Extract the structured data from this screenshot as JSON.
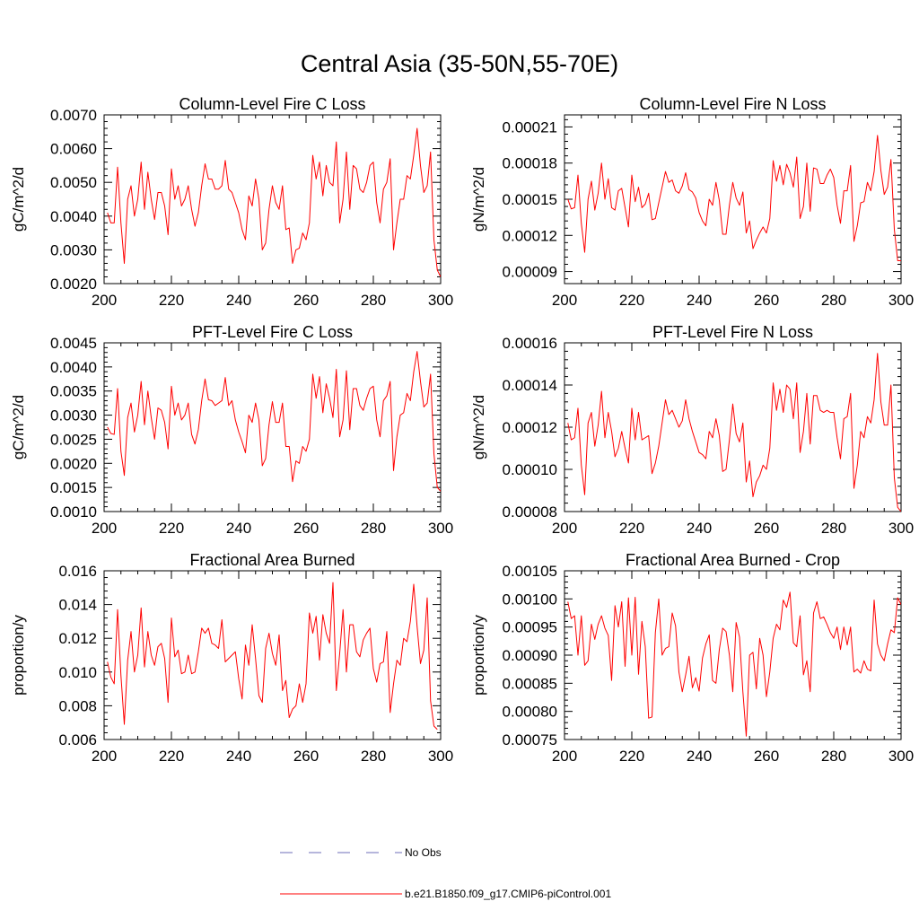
{
  "figure": {
    "title": "Central Asia (35-50N,55-70E)",
    "legend": [
      {
        "label": "No Obs",
        "color": "#6d6db8",
        "style": "dashed"
      },
      {
        "label": "b.e21.B1850.f09_g17.CMIP6-piControl.001",
        "color": "#ff0000",
        "style": "solid"
      }
    ]
  },
  "chart_data": [
    {
      "type": "line",
      "title": "Column-Level Fire C Loss",
      "xlabel": "",
      "ylabel": "gC/m^2/d",
      "xlim": [
        200,
        300
      ],
      "ylim": [
        0.002,
        0.007
      ],
      "xticks": [
        "200",
        "220",
        "240",
        "260",
        "280",
        "300"
      ],
      "yticks": [
        "0.0020",
        "0.0030",
        "0.0040",
        "0.0050",
        "0.0060",
        "0.0070"
      ],
      "x_start": 201,
      "series": [
        {
          "name": "b.e21.B1850.f09_g17.CMIP6-piControl.001",
          "color": "#ff0000",
          "values": [
            0.0041,
            0.0038,
            0.0038,
            0.00545,
            0.0038,
            0.0026,
            0.0045,
            0.0049,
            0.004,
            0.0045,
            0.0056,
            0.0042,
            0.0053,
            0.0045,
            0.0039,
            0.0047,
            0.0047,
            0.0043,
            0.00345,
            0.0054,
            0.0045,
            0.0049,
            0.0043,
            0.0045,
            0.0049,
            0.0042,
            0.0037,
            0.0041,
            0.0049,
            0.00555,
            0.0051,
            0.0051,
            0.0048,
            0.0048,
            0.0049,
            0.00565,
            0.0048,
            0.0047,
            0.0044,
            0.0041,
            0.0036,
            0.0033,
            0.0046,
            0.0043,
            0.0051,
            0.0045,
            0.003,
            0.0032,
            0.0042,
            0.0049,
            0.0044,
            0.0042,
            0.0049,
            0.0036,
            0.00365,
            0.0026,
            0.003,
            0.00305,
            0.0035,
            0.0033,
            0.0038,
            0.0058,
            0.0051,
            0.0056,
            0.0046,
            0.0055,
            0.005,
            0.0049,
            0.0062,
            0.0038,
            0.0045,
            0.0059,
            0.0042,
            0.0055,
            0.0054,
            0.0048,
            0.0047,
            0.005,
            0.0055,
            0.0056,
            0.0044,
            0.0038,
            0.0048,
            0.005,
            0.0057,
            0.003,
            0.0038,
            0.0045,
            0.0045,
            0.0052,
            0.0051,
            0.0058,
            0.0066,
            0.0055,
            0.0047,
            0.0049,
            0.0059,
            0.0033,
            0.0024,
            0.0022
          ]
        }
      ]
    },
    {
      "type": "line",
      "title": "Column-Level Fire N Loss",
      "xlabel": "",
      "ylabel": "gN/m^2/d",
      "xlim": [
        200,
        300
      ],
      "ylim": [
        8e-05,
        0.00022
      ],
      "xticks": [
        "200",
        "220",
        "240",
        "260",
        "280",
        "300"
      ],
      "yticks": [
        "0.00009",
        "0.00012",
        "0.00015",
        "0.00018",
        "0.00021"
      ],
      "ytick_values": [
        9e-05,
        0.00012,
        0.00015,
        0.00018,
        0.00021
      ],
      "x_start": 201,
      "series": [
        {
          "name": "b.e21.B1850.f09_g17.CMIP6-piControl.001",
          "color": "#ff0000",
          "values": [
            0.00015,
            0.000142,
            0.000143,
            0.00017,
            0.00013,
            0.000106,
            0.00015,
            0.000165,
            0.000141,
            0.000155,
            0.00018,
            0.00015,
            0.000167,
            0.000143,
            0.000141,
            0.000157,
            0.000159,
            0.000143,
            0.000127,
            0.00017,
            0.000148,
            0.00016,
            0.000143,
            0.000146,
            0.000155,
            0.000133,
            0.000134,
            0.000147,
            0.00016,
            0.000173,
            0.000164,
            0.000166,
            0.000157,
            0.000155,
            0.000161,
            0.000172,
            0.000158,
            0.000156,
            0.000151,
            0.000139,
            0.000132,
            0.000128,
            0.00015,
            0.000145,
            0.000164,
            0.000149,
            0.000121,
            0.000121,
            0.000145,
            0.000164,
            0.000151,
            0.000145,
            0.000156,
            0.000122,
            0.000132,
            0.000109,
            0.000116,
            0.000122,
            0.000127,
            0.000122,
            0.000134,
            0.000182,
            0.000165,
            0.000178,
            0.000162,
            0.000179,
            0.000172,
            0.00016,
            0.000185,
            0.000134,
            0.000144,
            0.00018,
            0.00014,
            0.000176,
            0.000175,
            0.000163,
            0.000163,
            0.00017,
            0.000175,
            0.000168,
            0.000145,
            0.00013,
            0.000157,
            0.000157,
            0.000178,
            0.000115,
            0.000128,
            0.000147,
            0.000148,
            0.000164,
            0.000157,
            0.000173,
            0.000203,
            0.000174,
            0.000154,
            0.00016,
            0.000183,
            0.000125,
            9.9e-05,
            9.9e-05
          ]
        }
      ]
    },
    {
      "type": "line",
      "title": "PFT-Level Fire C Loss",
      "xlabel": "",
      "ylabel": "gC/m^2/d",
      "xlim": [
        200,
        300
      ],
      "ylim": [
        0.001,
        0.0045
      ],
      "xticks": [
        "200",
        "220",
        "240",
        "260",
        "280",
        "300"
      ],
      "yticks": [
        "0.0010",
        "0.0015",
        "0.0020",
        "0.0025",
        "0.0030",
        "0.0035",
        "0.0040",
        "0.0045"
      ],
      "x_start": 201,
      "series": [
        {
          "name": "b.e21.B1850.f09_g17.CMIP6-piControl.001",
          "color": "#ff0000",
          "values": [
            0.00275,
            0.00262,
            0.0026,
            0.00355,
            0.00225,
            0.00175,
            0.00295,
            0.00325,
            0.00265,
            0.003,
            0.0037,
            0.0028,
            0.0035,
            0.00295,
            0.0025,
            0.00315,
            0.0031,
            0.00285,
            0.0023,
            0.0036,
            0.003,
            0.00325,
            0.0029,
            0.003,
            0.00325,
            0.0026,
            0.0024,
            0.0027,
            0.0033,
            0.00375,
            0.00332,
            0.0033,
            0.0032,
            0.00325,
            0.0033,
            0.00378,
            0.0032,
            0.0033,
            0.0029,
            0.00265,
            0.00245,
            0.00222,
            0.003,
            0.00285,
            0.00325,
            0.0029,
            0.00195,
            0.0021,
            0.0028,
            0.00328,
            0.00285,
            0.00285,
            0.00325,
            0.00235,
            0.00235,
            0.00162,
            0.00205,
            0.002,
            0.00235,
            0.00225,
            0.0025,
            0.00385,
            0.00335,
            0.0038,
            0.00305,
            0.00365,
            0.00335,
            0.00295,
            0.00395,
            0.00255,
            0.0029,
            0.00392,
            0.0027,
            0.00355,
            0.00355,
            0.0032,
            0.0031,
            0.00335,
            0.00355,
            0.0036,
            0.0029,
            0.00255,
            0.0033,
            0.0034,
            0.0037,
            0.00185,
            0.00255,
            0.003,
            0.00305,
            0.00345,
            0.0033,
            0.0039,
            0.00432,
            0.0037,
            0.00317,
            0.00325,
            0.00385,
            0.0022,
            0.0015,
            0.00142
          ]
        }
      ]
    },
    {
      "type": "line",
      "title": "PFT-Level Fire N Loss",
      "xlabel": "",
      "ylabel": "gN/m^2/d",
      "xlim": [
        200,
        300
      ],
      "ylim": [
        8e-05,
        0.00016
      ],
      "xticks": [
        "200",
        "220",
        "240",
        "260",
        "280",
        "300"
      ],
      "yticks": [
        "0.00008",
        "0.00010",
        "0.00012",
        "0.00014",
        "0.00016"
      ],
      "x_start": 201,
      "series": [
        {
          "name": "b.e21.B1850.f09_g17.CMIP6-piControl.001",
          "color": "#ff0000",
          "values": [
            0.000122,
            0.000114,
            0.000115,
            0.000129,
            0.000102,
            8.8e-05,
            0.000122,
            0.000127,
            0.000111,
            0.000121,
            0.000137,
            0.000115,
            0.000127,
            0.000118,
            0.000106,
            0.00011,
            0.000118,
            0.00011,
            0.000103,
            0.000129,
            0.000114,
            0.000127,
            0.000114,
            0.000115,
            0.000116,
            9.8e-05,
            0.000103,
            0.000111,
            0.000122,
            0.000133,
            0.000126,
            0.000128,
            0.000124,
            0.00012,
            0.000123,
            0.000133,
            0.000124,
            0.000118,
            0.000113,
            0.000108,
            0.000107,
            0.000105,
            0.000118,
            0.000115,
            0.000124,
            0.000116,
            9.9e-05,
            0.0001,
            0.000114,
            0.000131,
            0.000117,
            0.000113,
            0.000122,
            9.4e-05,
            0.000104,
            8.7e-05,
            9.4e-05,
            9.7e-05,
            0.000102,
            0.0001,
            0.00011,
            0.000141,
            0.000128,
            0.000138,
            0.000127,
            0.00014,
            0.000138,
            0.000124,
            0.000141,
            0.000108,
            0.000118,
            0.000136,
            0.000112,
            0.000135,
            0.000135,
            0.000128,
            0.000127,
            0.000128,
            0.000127,
            0.000127,
            0.000115,
            0.000105,
            0.000124,
            0.000125,
            0.000136,
            9.1e-05,
            0.000102,
            0.000118,
            0.000115,
            0.000125,
            0.000122,
            0.000133,
            0.000155,
            0.000132,
            0.000121,
            0.000121,
            0.00014,
            9.6e-05,
            8.2e-05,
            8e-05
          ]
        }
      ]
    },
    {
      "type": "line",
      "title": "Fractional Area Burned",
      "xlabel": "",
      "ylabel": "proportion/y",
      "xlim": [
        200,
        300
      ],
      "ylim": [
        0.006,
        0.016
      ],
      "xticks": [
        "200",
        "220",
        "240",
        "260",
        "280",
        "300"
      ],
      "yticks": [
        "0.006",
        "0.008",
        "0.010",
        "0.012",
        "0.014",
        "0.016"
      ],
      "x_start": 201,
      "series": [
        {
          "name": "b.e21.B1850.f09_g17.CMIP6-piControl.001",
          "color": "#ff0000",
          "values": [
            0.0106,
            0.0097,
            0.0093,
            0.0137,
            0.0098,
            0.0069,
            0.0107,
            0.0124,
            0.01,
            0.011,
            0.0138,
            0.0103,
            0.0124,
            0.011,
            0.0104,
            0.0115,
            0.0117,
            0.0108,
            0.0082,
            0.0132,
            0.0109,
            0.0113,
            0.0099,
            0.01,
            0.011,
            0.0099,
            0.01,
            0.0112,
            0.0126,
            0.0123,
            0.0126,
            0.0117,
            0.0116,
            0.0114,
            0.0131,
            0.0106,
            0.0108,
            0.011,
            0.0112,
            0.0096,
            0.0084,
            0.0116,
            0.0104,
            0.0128,
            0.0108,
            0.0086,
            0.0082,
            0.0114,
            0.0123,
            0.0111,
            0.0104,
            0.0122,
            0.0089,
            0.0095,
            0.0073,
            0.0078,
            0.008,
            0.0093,
            0.0082,
            0.0093,
            0.0135,
            0.0123,
            0.0133,
            0.0107,
            0.0134,
            0.0123,
            0.0117,
            0.0153,
            0.0089,
            0.0111,
            0.0137,
            0.01,
            0.0128,
            0.0128,
            0.0112,
            0.0109,
            0.0119,
            0.0123,
            0.0126,
            0.0102,
            0.0094,
            0.0105,
            0.0106,
            0.0124,
            0.0076,
            0.0093,
            0.0107,
            0.0104,
            0.012,
            0.0118,
            0.013,
            0.0152,
            0.0127,
            0.0105,
            0.0113,
            0.0144,
            0.0083,
            0.0068,
            0.0066
          ]
        }
      ]
    },
    {
      "type": "line",
      "title": "Fractional Area Burned - Crop",
      "xlabel": "",
      "ylabel": "proportion/y",
      "xlim": [
        200,
        300
      ],
      "ylim": [
        0.00075,
        0.00105
      ],
      "xticks": [
        "200",
        "220",
        "240",
        "260",
        "280",
        "300"
      ],
      "yticks": [
        "0.00075",
        "0.00080",
        "0.00085",
        "0.00090",
        "0.00095",
        "0.00100",
        "0.00105"
      ],
      "x_start": 201,
      "series": [
        {
          "name": "b.e21.B1850.f09_g17.CMIP6-piControl.001",
          "color": "#ff0000",
          "values": [
            0.000995,
            0.000965,
            0.00097,
            0.0009,
            0.00097,
            0.000882,
            0.00089,
            0.000955,
            0.000928,
            0.000955,
            0.00097,
            0.000948,
            0.000935,
            0.000855,
            0.000988,
            0.00095,
            0.000995,
            0.00088,
            0.001002,
            0.0009,
            0.001003,
            0.000866,
            0.00096,
            0.000915,
            0.000788,
            0.00079,
            0.00094,
            0.001,
            0.0009,
            0.000912,
            0.000915,
            0.000975,
            0.000952,
            0.00087,
            0.000835,
            0.000865,
            0.000898,
            0.000842,
            0.00086,
            0.000836,
            0.000895,
            0.00092,
            0.000936,
            0.000855,
            0.00085,
            0.00091,
            0.000948,
            0.000942,
            0.0009,
            0.000835,
            0.000958,
            0.000932,
            0.000835,
            0.000756,
            0.0009,
            0.000905,
            0.00084,
            0.00093,
            0.0009,
            0.000826,
            0.00087,
            0.00093,
            0.000955,
            0.000945,
            0.000998,
            0.000985,
            0.001012,
            0.000922,
            0.000915,
            0.00097,
            0.000865,
            0.00089,
            0.000835,
            0.000975,
            0.000995,
            0.000965,
            0.000968,
            0.000955,
            0.00094,
            0.00093,
            0.00095,
            0.00091,
            0.00095,
            0.000918,
            0.00095,
            0.00087,
            0.000875,
            0.000868,
            0.00089,
            0.000875,
            0.000872,
            0.000998,
            0.00092,
            0.0009,
            0.00089,
            0.00092,
            0.000945,
            0.00094,
            0.001002,
            0.00099
          ]
        }
      ]
    }
  ]
}
